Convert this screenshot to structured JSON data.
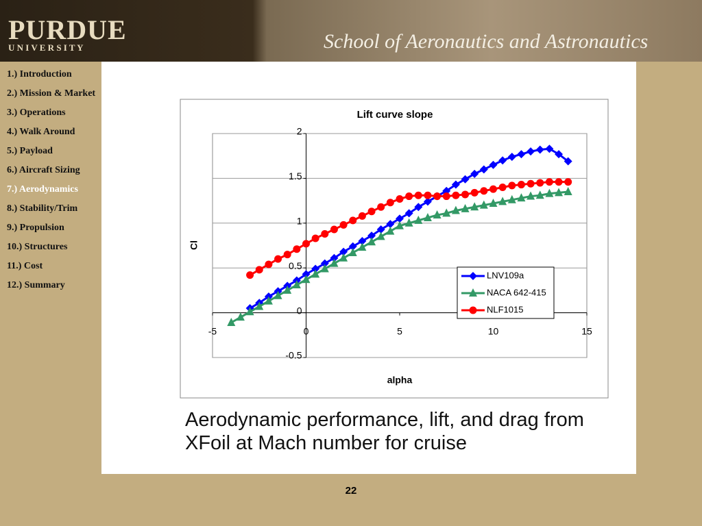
{
  "header": {
    "logo": "PURDUE",
    "logo_sub": "U N I V E R S I T Y",
    "title": "School of Aeronautics and Astronautics"
  },
  "nav": [
    "1.)  Introduction",
    "2.)  Mission & Market",
    "3.)  Operations",
    "4.)  Walk Around",
    "5.)  Payload",
    "6.)  Aircraft Sizing",
    "7.)  Aerodynamics",
    "8.) Stability/Trim",
    "9.)  Propulsion",
    "10.)  Structures",
    "11.) Cost",
    "12.) Summary"
  ],
  "caption": "Aerodynamic performance, lift, and drag from XFoil at Mach number for cruise",
  "page_number": "22",
  "chart_data": {
    "type": "line",
    "title": "Lift curve slope",
    "x_label": "alpha",
    "y_label": "Cl",
    "xlim": [
      -5,
      15
    ],
    "xticks": [
      -5,
      0,
      5,
      10,
      15
    ],
    "ylim": [
      -0.5,
      2
    ],
    "yticks": [
      -0.5,
      0,
      0.5,
      1,
      1.5,
      2
    ],
    "grid": true,
    "legend": "lower right",
    "series": [
      {
        "name": "LNV109a",
        "color": "#0000ff",
        "marker": "diamond",
        "x": [
          -3,
          -2.5,
          -2,
          -1.5,
          -1,
          -0.5,
          0,
          0.5,
          1,
          1.5,
          2,
          2.5,
          3,
          3.5,
          4,
          4.5,
          5,
          5.5,
          6,
          6.5,
          7,
          7.5,
          8,
          8.5,
          9,
          9.5,
          10,
          10.5,
          11,
          11.5,
          12,
          12.5,
          13,
          13.5,
          14
        ],
        "values": [
          0.05,
          0.11,
          0.18,
          0.24,
          0.3,
          0.36,
          0.43,
          0.49,
          0.55,
          0.61,
          0.68,
          0.74,
          0.8,
          0.86,
          0.93,
          0.99,
          1.05,
          1.11,
          1.18,
          1.24,
          1.3,
          1.36,
          1.43,
          1.49,
          1.55,
          1.6,
          1.65,
          1.7,
          1.74,
          1.77,
          1.8,
          1.82,
          1.83,
          1.77,
          1.69
        ]
      },
      {
        "name": "NACA 642-415",
        "color": "#339966",
        "marker": "triangle",
        "x": [
          -4,
          -3.5,
          -3,
          -2.5,
          -2,
          -1.5,
          -1,
          -0.5,
          0,
          0.5,
          1,
          1.5,
          2,
          2.5,
          3,
          3.5,
          4,
          4.5,
          5,
          5.5,
          6,
          6.5,
          7,
          7.5,
          8,
          8.5,
          9,
          9.5,
          10,
          10.5,
          11,
          11.5,
          12,
          12.5,
          13,
          13.5,
          14
        ],
        "values": [
          -0.11,
          -0.05,
          0.01,
          0.07,
          0.13,
          0.19,
          0.25,
          0.31,
          0.37,
          0.43,
          0.49,
          0.55,
          0.61,
          0.67,
          0.73,
          0.79,
          0.85,
          0.91,
          0.97,
          1.0,
          1.03,
          1.06,
          1.09,
          1.11,
          1.14,
          1.16,
          1.18,
          1.2,
          1.22,
          1.24,
          1.26,
          1.28,
          1.3,
          1.31,
          1.33,
          1.34,
          1.35
        ]
      },
      {
        "name": "NLF1015",
        "color": "#ff0000",
        "marker": "circle",
        "x": [
          -3,
          -2.5,
          -2,
          -1.5,
          -1,
          -0.5,
          0,
          0.5,
          1,
          1.5,
          2,
          2.5,
          3,
          3.5,
          4,
          4.5,
          5,
          5.5,
          6,
          6.5,
          7,
          7.5,
          8,
          8.5,
          9,
          9.5,
          10,
          10.5,
          11,
          11.5,
          12,
          12.5,
          13,
          13.5,
          14
        ],
        "values": [
          0.42,
          0.48,
          0.54,
          0.6,
          0.65,
          0.71,
          0.77,
          0.83,
          0.88,
          0.93,
          0.98,
          1.03,
          1.08,
          1.13,
          1.18,
          1.23,
          1.27,
          1.3,
          1.31,
          1.31,
          1.3,
          1.3,
          1.31,
          1.32,
          1.34,
          1.36,
          1.38,
          1.4,
          1.42,
          1.43,
          1.44,
          1.45,
          1.46,
          1.46,
          1.46
        ]
      }
    ]
  }
}
